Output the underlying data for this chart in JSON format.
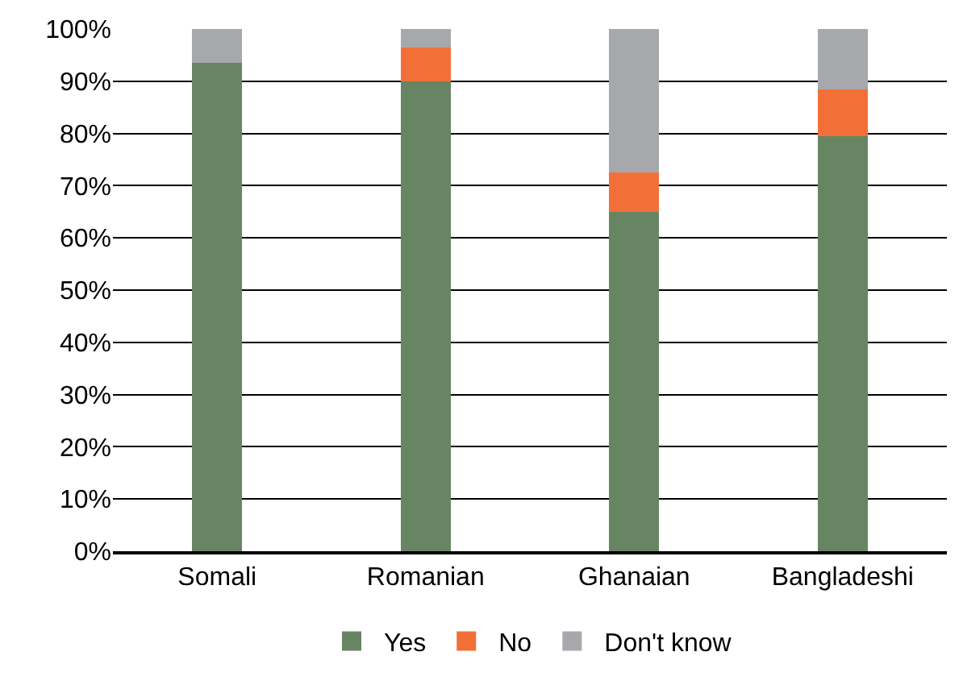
{
  "chart_data": {
    "type": "bar",
    "stacked": true,
    "categories": [
      "Somali",
      "Romanian",
      "Ghanaian",
      "Bangladeshi"
    ],
    "series": [
      {
        "name": "Yes",
        "color": "#678562",
        "values": [
          93.5,
          90,
          65,
          79.5
        ]
      },
      {
        "name": "No",
        "color": "#f27038",
        "values": [
          0,
          6.5,
          7.5,
          9
        ]
      },
      {
        "name": "Don't know",
        "color": "#a7a8ab",
        "values": [
          6.5,
          3.5,
          27.5,
          11.5
        ]
      }
    ],
    "ylim": [
      0,
      100
    ],
    "yticks": [
      {
        "value": 0,
        "label": "0%"
      },
      {
        "value": 10,
        "label": "10%"
      },
      {
        "value": 20,
        "label": "20%"
      },
      {
        "value": 30,
        "label": "30%"
      },
      {
        "value": 40,
        "label": "40%"
      },
      {
        "value": 50,
        "label": "50%"
      },
      {
        "value": 60,
        "label": "60%"
      },
      {
        "value": 70,
        "label": "70%"
      },
      {
        "value": 80,
        "label": "80%"
      },
      {
        "value": 90,
        "label": "90%"
      },
      {
        "value": 100,
        "label": "100%"
      }
    ],
    "grid": "y",
    "legend": "bottom"
  }
}
